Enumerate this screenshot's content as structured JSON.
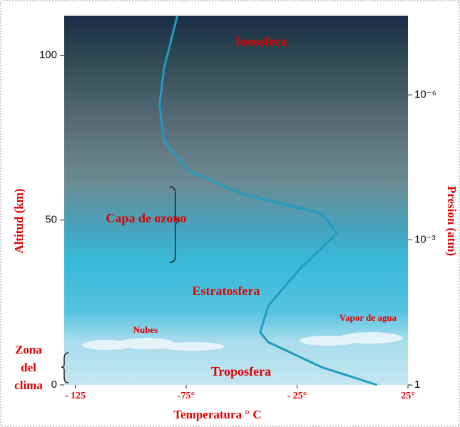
{
  "chart_data": {
    "type": "line",
    "x_label": "Temperatura ° C",
    "y_label": "Altitud (km)",
    "y2_label": "Presion (atm)",
    "x": [
      11,
      -14,
      -38,
      -41.6,
      -38,
      -24,
      -7,
      -14,
      -50,
      -74,
      -85,
      -87,
      -85,
      -82,
      -79
    ],
    "values": [
      0,
      5.4,
      13,
      16,
      24,
      35,
      46,
      52,
      58,
      65,
      74,
      85,
      96,
      104,
      112
    ],
    "color": "#1f9dc0",
    "xlim": [
      -130,
      25
    ],
    "xticks": [
      {
        "value": -125,
        "label": "- 125"
      },
      {
        "value": -75,
        "label": "-75°"
      },
      {
        "value": -25,
        "label": "- 25°"
      },
      {
        "value": 25,
        "label": "25°"
      }
    ],
    "ylim": [
      0,
      112
    ],
    "yticks": [
      0,
      50,
      100
    ],
    "y2_log": true,
    "y2lim": [
      1,
      2.3e-08
    ],
    "y2ticks": [
      1,
      {
        "value": 0.001,
        "label": "10⁻³"
      },
      {
        "value": 1e-06,
        "label": "10⁻⁶"
      }
    ],
    "annotations": [
      "Ionosfera",
      "Capa de ozono",
      "Estratosfera",
      "Nubes",
      "Vapor de agua",
      "Troposfera"
    ],
    "climate_zone": [
      "Zona",
      "del",
      "clima"
    ]
  }
}
